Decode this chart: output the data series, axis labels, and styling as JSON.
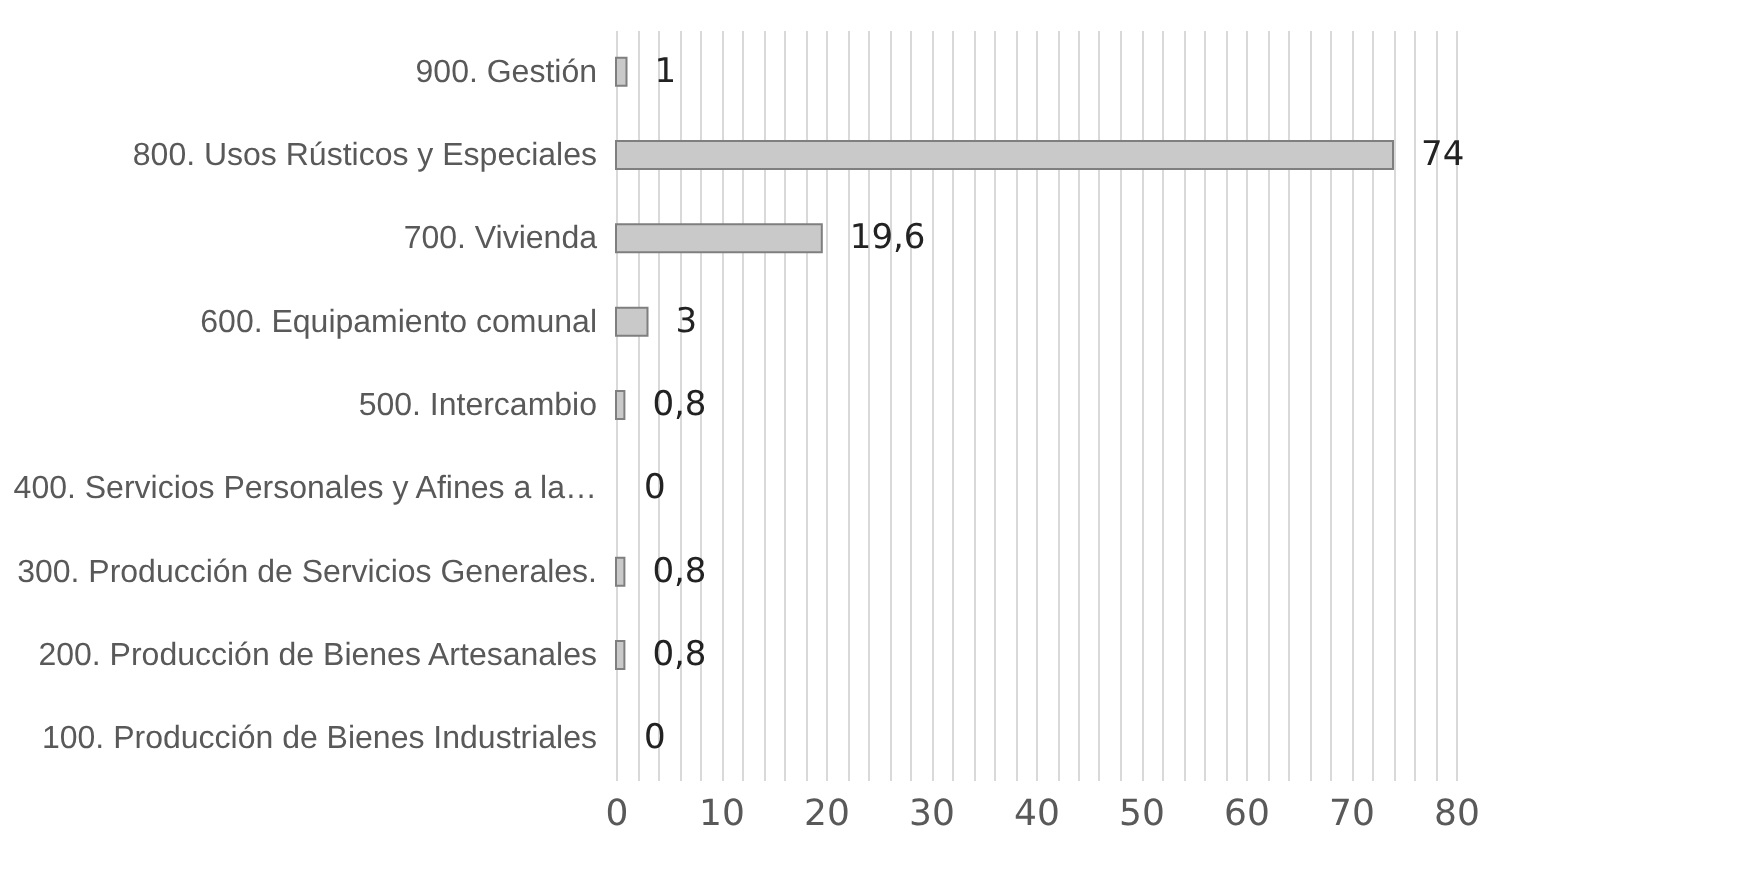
{
  "chart_data": {
    "type": "bar",
    "orientation": "horizontal",
    "categories": [
      "900. Gestión",
      "800. Usos Rústicos y Especiales",
      "700. Vivienda",
      "600. Equipamiento comunal",
      "500. Intercambio",
      "400. Servicios Personales y Afines a la…",
      "300. Producción de Servicios Generales.",
      "200. Producción de Bienes Artesanales",
      "100. Producción de Bienes Industriales"
    ],
    "values": [
      1,
      74,
      19.6,
      3,
      0.8,
      0,
      0.8,
      0.8,
      0
    ],
    "value_labels": [
      "1",
      "74",
      "19,6",
      "3",
      "0,8",
      "0",
      "0,8",
      "0,8",
      "0"
    ],
    "color": "#c9c9c9",
    "xlim": [
      0,
      80
    ],
    "xticks": [
      0,
      {
        "value": 2,
        "label": null
      },
      {
        "value": 4,
        "label": null
      },
      {
        "value": 6,
        "label": null
      },
      {
        "value": 8,
        "label": null
      },
      10,
      {
        "value": 12,
        "label": null
      },
      {
        "value": 14,
        "label": null
      },
      {
        "value": 16,
        "label": null
      },
      {
        "value": 18,
        "label": null
      },
      20,
      {
        "value": 22,
        "label": null
      },
      {
        "value": 24,
        "label": null
      },
      {
        "value": 26,
        "label": null
      },
      {
        "value": 28,
        "label": null
      },
      30,
      {
        "value": 32,
        "label": null
      },
      {
        "value": 34,
        "label": null
      },
      {
        "value": 36,
        "label": null
      },
      {
        "value": 38,
        "label": null
      },
      40,
      {
        "value": 42,
        "label": null
      },
      {
        "value": 44,
        "label": null
      },
      {
        "value": 46,
        "label": null
      },
      {
        "value": 48,
        "label": null
      },
      50,
      {
        "value": 52,
        "label": null
      },
      {
        "value": 54,
        "label": null
      },
      {
        "value": 56,
        "label": null
      },
      {
        "value": 58,
        "label": null
      },
      60,
      {
        "value": 62,
        "label": null
      },
      {
        "value": 64,
        "label": null
      },
      {
        "value": 66,
        "label": null
      },
      {
        "value": 68,
        "label": null
      },
      70,
      {
        "value": 72,
        "label": null
      },
      {
        "value": 74,
        "label": null
      },
      {
        "value": 76,
        "label": null
      },
      {
        "value": 78,
        "label": null
      },
      80
    ],
    "grid": "x"
  }
}
